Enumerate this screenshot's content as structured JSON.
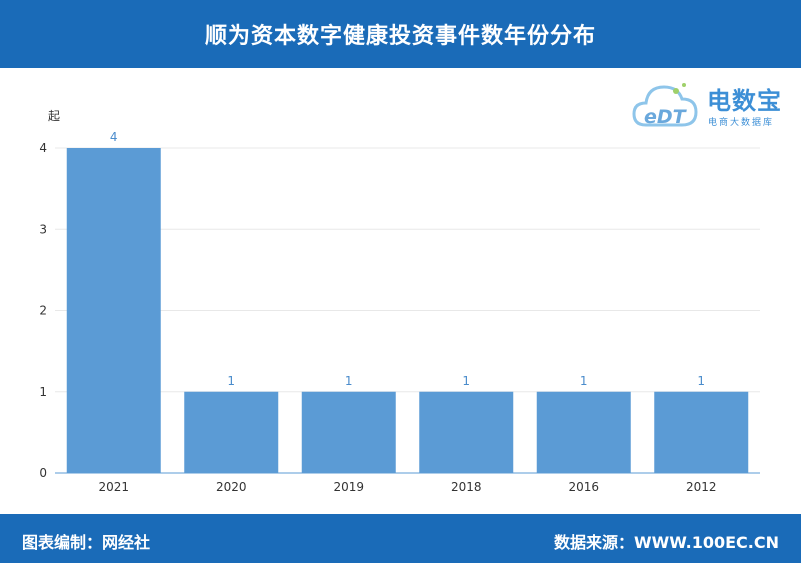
{
  "header": {
    "title": "顺为资本数字健康投资事件数年份分布"
  },
  "footer": {
    "left": "图表编制：网经社",
    "right": "数据来源：WWW.100EC.CN"
  },
  "logo": {
    "mark": "eDT",
    "name": "电数宝",
    "tagline": "电商大数据库"
  },
  "colors": {
    "header_bg": "#1a6bb8",
    "bar": "#5b9bd5",
    "label": "#4a8ccc",
    "axis_text": "#333333"
  },
  "chart_data": {
    "type": "bar",
    "ylabel": "起",
    "categories": [
      "2021",
      "2020",
      "2019",
      "2018",
      "2016",
      "2012"
    ],
    "values": [
      4,
      1,
      1,
      1,
      1,
      1
    ],
    "data_labels": [
      "4",
      "1",
      "1",
      "1",
      "1",
      "1"
    ],
    "yticks": [
      "0",
      "1",
      "2",
      "3",
      "4"
    ],
    "ylim": [
      0,
      4
    ],
    "grid": true,
    "legend": "none"
  }
}
